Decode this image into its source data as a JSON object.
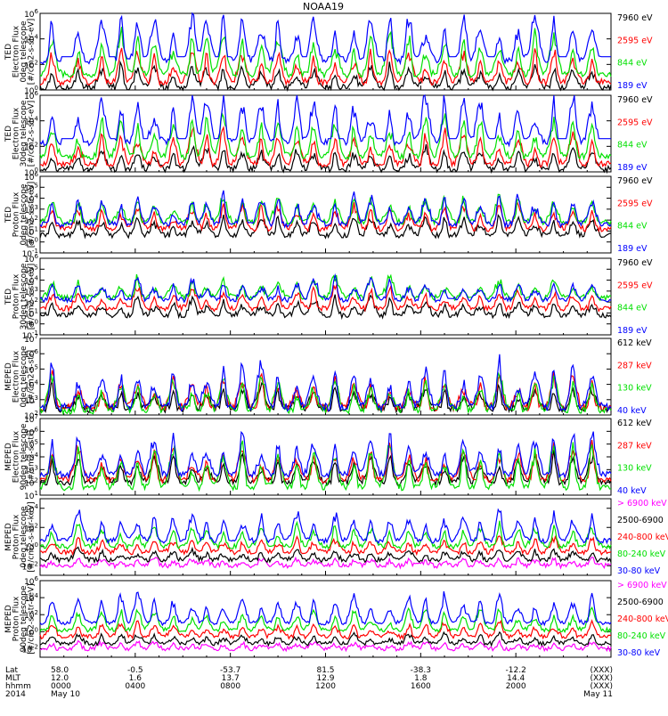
{
  "title": "NOAA19",
  "colors": {
    "black": "#000000",
    "red": "#ff0000",
    "green": "#00e000",
    "blue": "#0000ff",
    "magenta": "#ff00ff"
  },
  "chart_data": [
    {
      "type": "line",
      "instrument": "TED",
      "ylabel_lines": [
        "TED",
        "Electron Flux",
        "0deg telescope",
        "[#/cm2-s-str-eV]"
      ],
      "ytick_labels": [
        "10^0",
        "10^2",
        "10^4",
        "10^6"
      ],
      "ylim_exp": [
        0,
        6
      ],
      "log_y": true,
      "series": [
        {
          "name": "7960 eV",
          "color": "black",
          "base": 0.2,
          "amp": 2.0
        },
        {
          "name": "2595 eV",
          "color": "red",
          "base": 0.6,
          "amp": 3.0
        },
        {
          "name": "844 eV",
          "color": "green",
          "base": 1.2,
          "amp": 3.8
        },
        {
          "name": "189 eV",
          "color": "blue",
          "base": 2.3,
          "amp": 4.4
        }
      ]
    },
    {
      "type": "line",
      "instrument": "TED",
      "ylabel_lines": [
        "TED",
        "Electron Flux",
        "30deg telescope",
        "[#/cm2-s-str-eV]"
      ],
      "ytick_labels": [
        "10^0",
        "10^2",
        "10^4",
        "10^6"
      ],
      "ylim_exp": [
        0,
        6
      ],
      "log_y": true,
      "series": [
        {
          "name": "7960 eV",
          "color": "black",
          "base": 0.2,
          "amp": 2.0
        },
        {
          "name": "2595 eV",
          "color": "red",
          "base": 0.6,
          "amp": 3.0
        },
        {
          "name": "844 eV",
          "color": "green",
          "base": 1.2,
          "amp": 3.8
        },
        {
          "name": "189 eV",
          "color": "blue",
          "base": 2.3,
          "amp": 4.4
        }
      ]
    },
    {
      "type": "line",
      "instrument": "TED",
      "ylabel_lines": [
        "TED",
        "Proton Flux",
        "0deg telescope",
        "[#/cm2-s-str-eV]"
      ],
      "ytick_labels": [
        "10^-1",
        "10^0",
        "10^1",
        "10^2",
        "10^3",
        "10^4",
        "10^5",
        "10^6"
      ],
      "ylim_exp": [
        -1,
        6
      ],
      "log_y": true,
      "series": [
        {
          "name": "7960 eV",
          "color": "black",
          "base": 0.6,
          "amp": 2.0
        },
        {
          "name": "2595 eV",
          "color": "red",
          "base": 1.2,
          "amp": 2.6
        },
        {
          "name": "844 eV",
          "color": "green",
          "base": 1.8,
          "amp": 2.8
        },
        {
          "name": "189 eV",
          "color": "blue",
          "base": 1.6,
          "amp": 3.2
        }
      ]
    },
    {
      "type": "line",
      "instrument": "TED",
      "ylabel_lines": [
        "TED",
        "Proton Flux",
        "30deg telescope",
        "[#/cm2-s-str-eV]"
      ],
      "ytick_labels": [
        "10^-1",
        "10^0",
        "10^1",
        "10^2",
        "10^3",
        "10^4",
        "10^5",
        "10^6"
      ],
      "ylim_exp": [
        -1,
        6
      ],
      "log_y": true,
      "series": [
        {
          "name": "7960 eV",
          "color": "black",
          "base": 0.8,
          "amp": 2.0
        },
        {
          "name": "2595 eV",
          "color": "red",
          "base": 1.4,
          "amp": 2.4
        },
        {
          "name": "844 eV",
          "color": "green",
          "base": 2.4,
          "amp": 2.4
        },
        {
          "name": "189 eV",
          "color": "blue",
          "base": 2.2,
          "amp": 2.6
        }
      ]
    },
    {
      "type": "line",
      "instrument": "MEPED",
      "ylabel_lines": [
        "MEPED",
        "Electron Flux",
        "0deg telescope",
        "[#/cm2-s-str]"
      ],
      "ytick_labels": [
        "10^2",
        "10^3",
        "10^4",
        "10^5",
        "10^6",
        "10^7"
      ],
      "ylim_exp": [
        2,
        7
      ],
      "log_y": true,
      "series": [
        {
          "name": "612 keV",
          "color": "black",
          "base": 2.4,
          "amp": 1.8
        },
        {
          "name": "287 keV",
          "color": "red",
          "base": 2.5,
          "amp": 2.6
        },
        {
          "name": "130 keV",
          "color": "green",
          "base": 2.3,
          "amp": 2.8
        },
        {
          "name": "40 keV",
          "color": "blue",
          "base": 2.5,
          "amp": 3.6
        }
      ]
    },
    {
      "type": "line",
      "instrument": "MEPED",
      "ylabel_lines": [
        "MEPED",
        "Electron Flux",
        "90deg telescope",
        "[#/cm2-s-str]"
      ],
      "ytick_labels": [
        "10^1",
        "10^2",
        "10^3",
        "10^4",
        "10^5",
        "10^6",
        "10^7"
      ],
      "ylim_exp": [
        1,
        7
      ],
      "log_y": true,
      "series": [
        {
          "name": "612 keV",
          "color": "black",
          "base": 2.0,
          "amp": 2.8
        },
        {
          "name": "287 keV",
          "color": "red",
          "base": 2.2,
          "amp": 3.4
        },
        {
          "name": "130 keV",
          "color": "green",
          "base": 1.6,
          "amp": 4.2
        },
        {
          "name": "40 keV",
          "color": "blue",
          "base": 2.6,
          "amp": 4.0
        }
      ]
    },
    {
      "type": "line",
      "instrument": "MEPED",
      "ylabel_lines": [
        "MEPED",
        "Proton Flux",
        "0deg telescope",
        "[#/cm2-s-str-keV]"
      ],
      "ytick_labels": [
        "10^-2",
        "10^0",
        "10^2",
        "10^4"
      ],
      "ylim_exp": [
        -3,
        5
      ],
      "log_y": true,
      "series": [
        {
          "name": "> 6900 keV",
          "color": "magenta",
          "base": -2.0,
          "amp": 1.0
        },
        {
          "name": "2500-6900",
          "color": "black",
          "base": -1.4,
          "amp": 1.4
        },
        {
          "name": "240-800 keV",
          "color": "red",
          "base": -0.6,
          "amp": 2.0
        },
        {
          "name": "80-240 keV",
          "color": "green",
          "base": 0.0,
          "amp": 3.0
        },
        {
          "name": "30-80 keV",
          "color": "blue",
          "base": 0.6,
          "amp": 4.0
        }
      ]
    },
    {
      "type": "line",
      "instrument": "MEPED",
      "ylabel_lines": [
        "MEPED",
        "Proton Flux",
        "90deg telescope",
        "[#/cm2-s-str-keV]"
      ],
      "ytick_labels": [
        "10^-2",
        "10^0",
        "10^2",
        "10^4",
        "10^6"
      ],
      "ylim_exp": [
        -3,
        6
      ],
      "log_y": true,
      "series": [
        {
          "name": "> 6900 keV",
          "color": "magenta",
          "base": -2.0,
          "amp": 1.0
        },
        {
          "name": "2500-6900",
          "color": "black",
          "base": -1.4,
          "amp": 1.4
        },
        {
          "name": "240-800 keV",
          "color": "red",
          "base": -0.6,
          "amp": 2.0
        },
        {
          "name": "80-240 keV",
          "color": "green",
          "base": 0.2,
          "amp": 3.0
        },
        {
          "name": "30-80 keV",
          "color": "blue",
          "base": 1.0,
          "amp": 4.2
        }
      ]
    }
  ],
  "time_axis": {
    "row_labels": [
      "Lat",
      "MLT",
      "hhmm",
      "2014"
    ],
    "ticks": [
      {
        "hour": 0,
        "lat": "58.0",
        "mlt": "12.0",
        "hhmm": "0000",
        "date": "May 10"
      },
      {
        "hour": 4,
        "lat": "-0.5",
        "mlt": "1.6",
        "hhmm": "0400",
        "date": ""
      },
      {
        "hour": 8,
        "lat": "-53.7",
        "mlt": "13.7",
        "hhmm": "0800",
        "date": ""
      },
      {
        "hour": 12,
        "lat": "81.5",
        "mlt": "12.9",
        "hhmm": "1200",
        "date": ""
      },
      {
        "hour": 16,
        "lat": "-38.3",
        "mlt": "1.8",
        "hhmm": "1600",
        "date": ""
      },
      {
        "hour": 20,
        "lat": "-12.2",
        "mlt": "14.4",
        "hhmm": "2000",
        "date": ""
      },
      {
        "hour": 24,
        "lat": "(XXX)",
        "mlt": "(XXX)",
        "hhmm": "(XXX)",
        "date": "May 11"
      }
    ]
  }
}
